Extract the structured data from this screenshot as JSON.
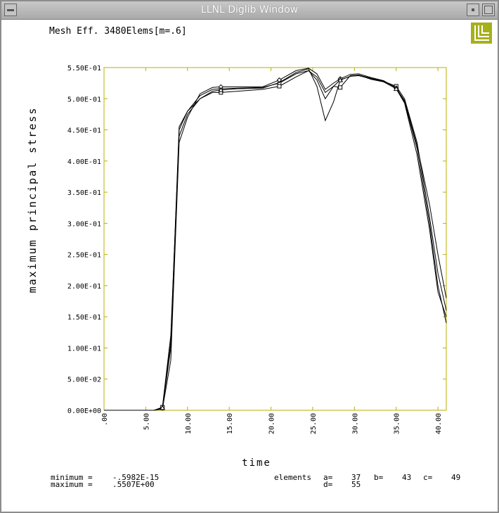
{
  "window": {
    "title": "LLNL Diglib Window"
  },
  "icons": {
    "menu": "window-menu-icon",
    "minimize": "minimize-icon",
    "maximize": "maximize-icon",
    "logo": "llnl-logo-icon"
  },
  "colors": {
    "frame": "#b8b000",
    "logo": "#a6b01a",
    "line": "#000000"
  },
  "chart_data": {
    "type": "line",
    "title": "Mesh Eff. 3480Elems[m=.6]",
    "xlabel": "time",
    "ylabel": "maximum principal stress",
    "xlim": [
      0,
      41
    ],
    "ylim": [
      0,
      0.55
    ],
    "x_ticks": [
      0,
      5,
      10,
      15,
      20,
      25,
      30,
      35,
      40
    ],
    "x_tick_labels": [
      ".00",
      "5.00",
      "10.00",
      "15.00",
      "20.00",
      "25.00",
      "30.00",
      "35.00",
      "40.00"
    ],
    "y_ticks": [
      0,
      0.05,
      0.1,
      0.15,
      0.2,
      0.25,
      0.3,
      0.35,
      0.4,
      0.45,
      0.5,
      0.55
    ],
    "y_tick_labels": [
      "0.00E+00",
      "5.00E-02",
      "1.00E-01",
      "1.50E-01",
      "2.00E-01",
      "2.50E-01",
      "3.00E-01",
      "3.50E-01",
      "4.00E-01",
      "4.50E-01",
      "5.00E-01",
      "5.50E-01"
    ],
    "grid": false,
    "series": [
      {
        "name": "a",
        "marker": "o",
        "x": [
          0,
          6.0,
          7.0,
          8.0,
          9.0,
          10.0,
          11.5,
          13.0,
          14.0,
          16.0,
          19.0,
          21.0,
          23.0,
          24.5,
          25.5,
          26.5,
          27.5,
          28.3,
          29.5,
          30.5,
          32.0,
          33.5,
          35.0,
          36.0,
          37.5,
          39.0,
          40.0,
          41.0
        ],
        "y": [
          0,
          0,
          0.003,
          0.1,
          0.45,
          0.48,
          0.505,
          0.515,
          0.516,
          0.517,
          0.518,
          0.525,
          0.54,
          0.545,
          0.53,
          0.5,
          0.52,
          0.53,
          0.536,
          0.537,
          0.532,
          0.528,
          0.518,
          0.495,
          0.42,
          0.3,
          0.2,
          0.14
        ]
      },
      {
        "name": "b",
        "marker": "□",
        "x": [
          0,
          6.0,
          7.0,
          8.0,
          9.0,
          10.0,
          11.5,
          13.0,
          14.0,
          16.0,
          19.0,
          21.0,
          23.0,
          24.5,
          25.5,
          26.5,
          27.5,
          28.3,
          29.5,
          30.5,
          32.0,
          33.5,
          35.0,
          36.0,
          37.5,
          39.0,
          40.0,
          41.0
        ],
        "y": [
          0,
          0,
          0.005,
          0.12,
          0.44,
          0.475,
          0.5,
          0.51,
          0.51,
          0.512,
          0.515,
          0.52,
          0.535,
          0.545,
          0.535,
          0.51,
          0.52,
          0.518,
          0.537,
          0.538,
          0.533,
          0.528,
          0.52,
          0.5,
          0.43,
          0.31,
          0.22,
          0.16
        ]
      },
      {
        "name": "c",
        "marker": "◇",
        "x": [
          0,
          6.0,
          7.0,
          8.0,
          9.0,
          10.0,
          11.5,
          13.0,
          14.0,
          16.0,
          19.0,
          21.0,
          23.0,
          24.5,
          25.5,
          26.5,
          27.5,
          28.3,
          29.5,
          30.5,
          32.0,
          33.5,
          35.0,
          36.0,
          37.5,
          39.0,
          40.0,
          41.0
        ],
        "y": [
          0,
          0,
          0.002,
          0.08,
          0.43,
          0.47,
          0.508,
          0.518,
          0.519,
          0.519,
          0.519,
          0.53,
          0.545,
          0.549,
          0.54,
          0.515,
          0.525,
          0.532,
          0.539,
          0.54,
          0.534,
          0.529,
          0.517,
          0.497,
          0.425,
          0.33,
          0.25,
          0.18
        ]
      },
      {
        "name": "d",
        "marker": "△",
        "x": [
          0,
          6.0,
          7.0,
          8.0,
          9.0,
          10.0,
          11.5,
          13.0,
          14.0,
          16.0,
          19.0,
          21.0,
          23.0,
          24.5,
          25.5,
          26.5,
          27.5,
          28.3,
          29.5,
          30.5,
          32.0,
          33.5,
          35.0,
          36.0,
          37.5,
          39.0,
          40.0,
          41.0
        ],
        "y": [
          0,
          0,
          0.004,
          0.11,
          0.455,
          0.48,
          0.5,
          0.512,
          0.514,
          0.516,
          0.517,
          0.526,
          0.542,
          0.548,
          0.52,
          0.465,
          0.495,
          0.53,
          0.536,
          0.538,
          0.531,
          0.527,
          0.516,
          0.493,
          0.41,
          0.29,
          0.19,
          0.15
        ]
      }
    ],
    "stats": {
      "minimum_label": "minimum =",
      "minimum_value": "-.5982E-15",
      "maximum_label": "maximum =",
      "maximum_value": ".5507E+00"
    },
    "elements": {
      "label": "elements",
      "a_label": "a=",
      "a_value": "37",
      "b_label": "b=",
      "b_value": "43",
      "c_label": "c=",
      "c_value": "49",
      "d_label": "d=",
      "d_value": "55"
    }
  }
}
